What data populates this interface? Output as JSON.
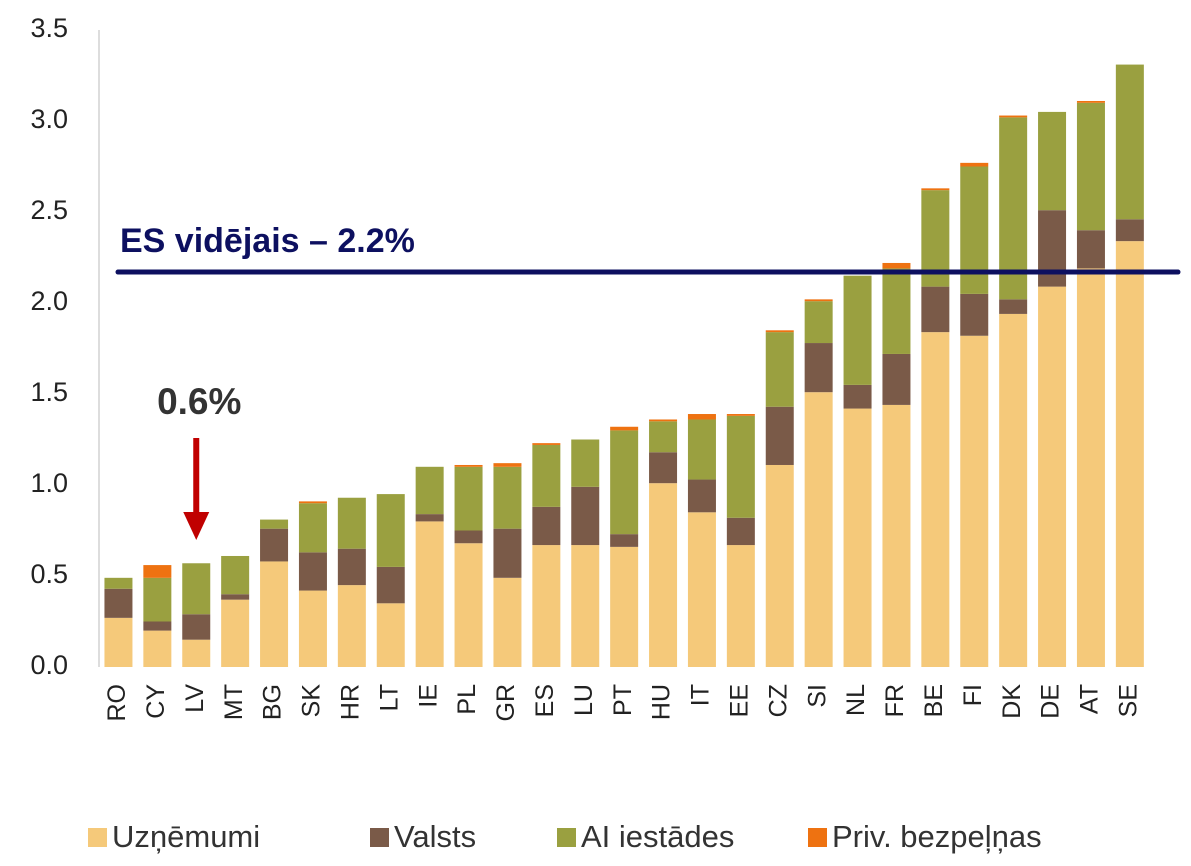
{
  "chart_data": {
    "type": "stacked_bar",
    "categories": [
      "RO",
      "CY",
      "LV",
      "MT",
      "BG",
      "SK",
      "HR",
      "LT",
      "IE",
      "PL",
      "GR",
      "ES",
      "LU",
      "PT",
      "HU",
      "IT",
      "EE",
      "CZ",
      "SI",
      "NL",
      "FR",
      "BE",
      "FI",
      "DK",
      "DE",
      "AT",
      "SE"
    ],
    "series": [
      {
        "name": "Uzņēmumi",
        "color": "#f5c97a",
        "values": [
          0.27,
          0.2,
          0.15,
          0.37,
          0.58,
          0.42,
          0.45,
          0.35,
          0.8,
          0.68,
          0.49,
          0.67,
          0.67,
          0.66,
          1.01,
          0.85,
          0.67,
          1.11,
          1.51,
          1.42,
          1.44,
          1.84,
          1.82,
          1.94,
          2.09,
          2.19,
          2.34
        ]
      },
      {
        "name": "Valsts",
        "color": "#7a5a48",
        "values": [
          0.16,
          0.05,
          0.14,
          0.03,
          0.18,
          0.21,
          0.2,
          0.2,
          0.04,
          0.07,
          0.27,
          0.21,
          0.32,
          0.07,
          0.17,
          0.18,
          0.15,
          0.32,
          0.27,
          0.13,
          0.28,
          0.25,
          0.23,
          0.08,
          0.42,
          0.21,
          0.12
        ]
      },
      {
        "name": "AI iestādes",
        "color": "#9aa040",
        "values": [
          0.06,
          0.24,
          0.28,
          0.21,
          0.05,
          0.27,
          0.28,
          0.4,
          0.26,
          0.35,
          0.34,
          0.34,
          0.26,
          0.57,
          0.17,
          0.33,
          0.56,
          0.41,
          0.23,
          0.6,
          0.47,
          0.53,
          0.7,
          1.0,
          0.54,
          0.7,
          0.85
        ]
      },
      {
        "name": "Priv. bezpeļņas",
        "color": "#ee7211",
        "values": [
          0,
          0.07,
          0,
          0,
          0,
          0.01,
          0,
          0,
          0,
          0.01,
          0.02,
          0.01,
          0,
          0.02,
          0.01,
          0.03,
          0.01,
          0.01,
          0.01,
          0,
          0.03,
          0.01,
          0.02,
          0.01,
          0,
          0.01,
          0
        ]
      }
    ],
    "ylim": [
      0,
      3.5
    ],
    "yticks": [
      {
        "value": 0,
        "label": "0.0"
      },
      0.5,
      {
        "value": 1,
        "label": "1.0"
      },
      1.5,
      {
        "value": 2,
        "label": "2.0"
      },
      2.5,
      {
        "value": 3,
        "label": "3.0"
      },
      3.5
    ],
    "reference_line": {
      "value": 2.17,
      "label": "ES vidējais – 2.2%",
      "color": "#0d1060"
    },
    "annotation": {
      "category_index": 2,
      "label": "0.6%",
      "color": "#c00000"
    }
  }
}
